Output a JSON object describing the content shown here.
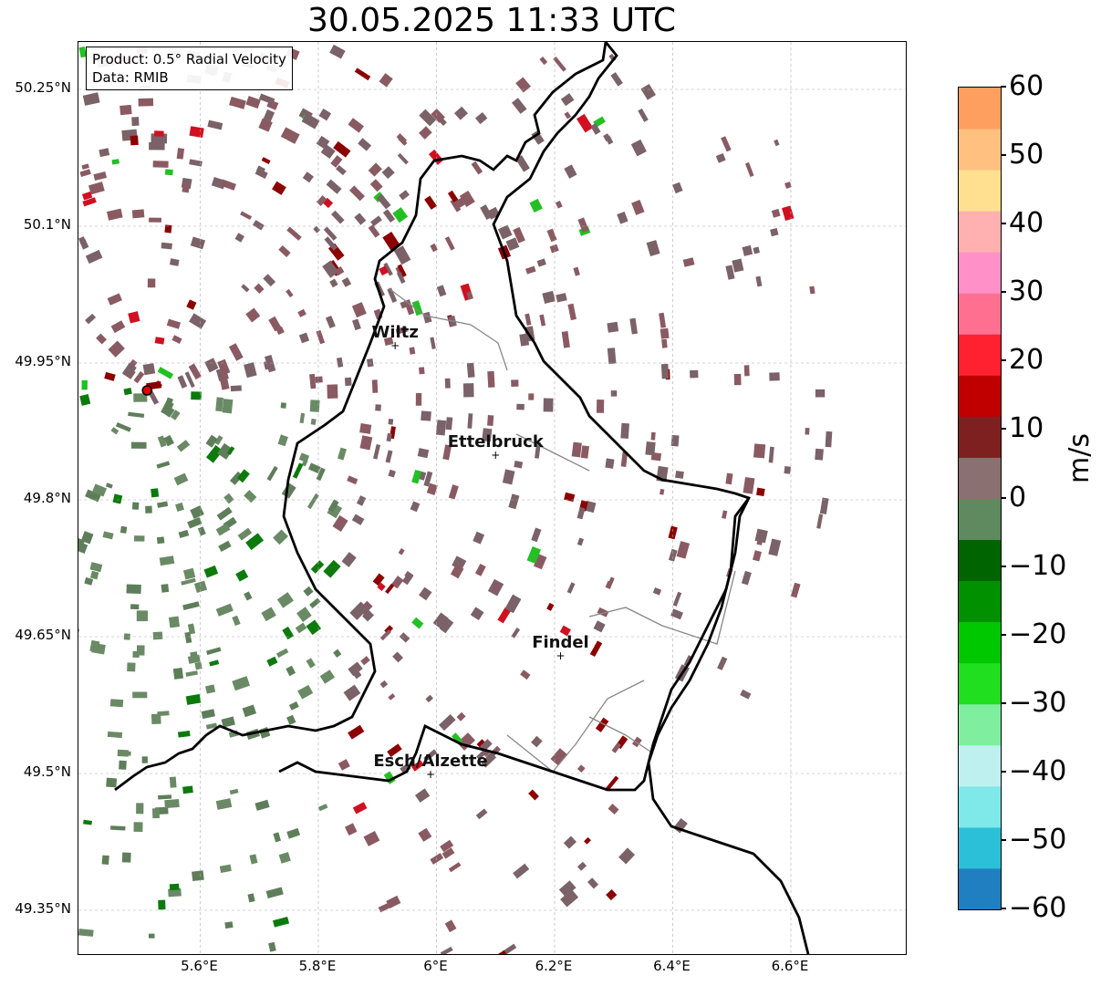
{
  "title": "30.05.2025 11:33 UTC",
  "info": {
    "product": "Product: 0.5° Radial Velocity",
    "source": "Data: RMIB"
  },
  "lat_ticks": [
    "50.25°N",
    "50.1°N",
    "49.95°N",
    "49.8°N",
    "49.65°N",
    "49.5°N",
    "49.35°N"
  ],
  "lon_ticks": [
    "5.6°E",
    "5.8°E",
    "6°E",
    "6.2°E",
    "6.4°E",
    "6.6°E"
  ],
  "cities": [
    {
      "name": "Wiltz",
      "lon": 5.93,
      "lat": 49.97
    },
    {
      "name": "Ettelbruck",
      "lon": 6.1,
      "lat": 49.85
    },
    {
      "name": "Findel",
      "lon": 6.21,
      "lat": 49.63
    },
    {
      "name": "Esch/Alzette",
      "lon": 5.99,
      "lat": 49.5
    }
  ],
  "radar_site": {
    "lon": 5.51,
    "lat": 49.92
  },
  "colorbar": {
    "unit": "m/s",
    "ticks": [
      "60",
      "50",
      "40",
      "30",
      "20",
      "10",
      "0",
      "−10",
      "−20",
      "−30",
      "−40",
      "−50",
      "−60"
    ],
    "min": -60,
    "max": 60,
    "colors": [
      "#1f7fc0",
      "#2bc0d8",
      "#7fe8e8",
      "#bff0f0",
      "#7fef9f",
      "#1fdf1f",
      "#00c800",
      "#009000",
      "#006400",
      "#5f8a5f",
      "#8a7070",
      "#7f2020",
      "#c00000",
      "#ff2030",
      "#ff7090",
      "#ff90c8",
      "#ffb0b0",
      "#ffe090",
      "#ffc080",
      "#ff9f5f"
    ]
  },
  "map": {
    "lon_range": [
      5.4,
      6.8
    ],
    "lat_range": [
      49.3,
      50.3
    ],
    "gridlines": true
  }
}
